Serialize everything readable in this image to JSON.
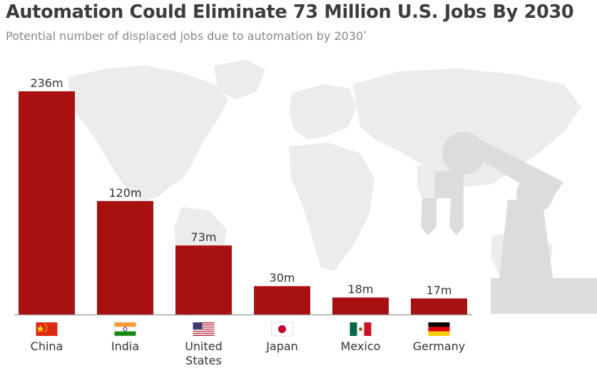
{
  "header": {
    "title": "Automation Could Eliminate 73 Million U.S. Jobs By 2030",
    "subtitle": "Potential number of displaced jobs due to automation by 2030",
    "subtitle_footnote_mark": "*"
  },
  "colors": {
    "bar": "#a91111",
    "background_map": "#e9e9e9",
    "robot_arm": "#d9d9d9",
    "axis": "#9a9a9a"
  },
  "chart_data": {
    "type": "bar",
    "categories": [
      "China",
      "India",
      "United States",
      "Japan",
      "Mexico",
      "Germany"
    ],
    "category_lines": [
      [
        "China"
      ],
      [
        "India"
      ],
      [
        "United",
        "States"
      ],
      [
        "Japan"
      ],
      [
        "Mexico"
      ],
      [
        "Germany"
      ]
    ],
    "values": [
      236,
      120,
      73,
      30,
      18,
      17
    ],
    "value_labels": [
      "236m",
      "120m",
      "73m",
      "30m",
      "18m",
      "17m"
    ],
    "flags": [
      "china-flag-icon",
      "india-flag-icon",
      "united-states-flag-icon",
      "japan-flag-icon",
      "mexico-flag-icon",
      "germany-flag-icon"
    ],
    "ylim": [
      0,
      236
    ],
    "grid": false,
    "legend": "none"
  }
}
